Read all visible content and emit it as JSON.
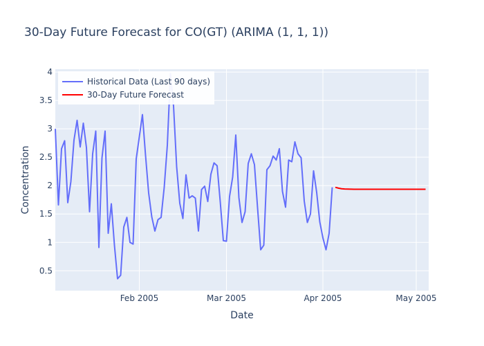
{
  "chart_data": {
    "type": "line",
    "title": "30-Day Future Forecast for CO(GT) (ARIMA (1, 1, 1))",
    "xlabel": "Date",
    "ylabel": "Concentration",
    "xlim": [
      "2005-01-05",
      "2005-05-05"
    ],
    "ylim": [
      0.15,
      4.05
    ],
    "x_ticks": [
      {
        "date": "2005-02-01",
        "label": "Feb 2005"
      },
      {
        "date": "2005-03-01",
        "label": "Mar 2005"
      },
      {
        "date": "2005-04-01",
        "label": "Apr 2005"
      },
      {
        "date": "2005-05-01",
        "label": "May 2005"
      }
    ],
    "y_ticks": [
      {
        "value": 0.5,
        "label": "0.5"
      },
      {
        "value": 1,
        "label": "1"
      },
      {
        "value": 1.5,
        "label": "1.5"
      },
      {
        "value": 2,
        "label": "2"
      },
      {
        "value": 2.5,
        "label": "2.5"
      },
      {
        "value": 3,
        "label": "3"
      },
      {
        "value": 3.5,
        "label": "3.5"
      },
      {
        "value": 4,
        "label": "4"
      }
    ],
    "grid": true,
    "legend_position": "top-left",
    "series": [
      {
        "name": "Historical Data (Last 90 days)",
        "color": "#636efa",
        "x": [
          "2005-01-05",
          "2005-01-06",
          "2005-01-07",
          "2005-01-08",
          "2005-01-09",
          "2005-01-10",
          "2005-01-11",
          "2005-01-12",
          "2005-01-13",
          "2005-01-14",
          "2005-01-15",
          "2005-01-16",
          "2005-01-17",
          "2005-01-18",
          "2005-01-19",
          "2005-01-20",
          "2005-01-21",
          "2005-01-22",
          "2005-01-23",
          "2005-01-24",
          "2005-01-25",
          "2005-01-26",
          "2005-01-27",
          "2005-01-28",
          "2005-01-29",
          "2005-01-30",
          "2005-01-31",
          "2005-02-01",
          "2005-02-02",
          "2005-02-03",
          "2005-02-04",
          "2005-02-05",
          "2005-02-06",
          "2005-02-07",
          "2005-02-08",
          "2005-02-09",
          "2005-02-10",
          "2005-02-11",
          "2005-02-12",
          "2005-02-13",
          "2005-02-14",
          "2005-02-15",
          "2005-02-16",
          "2005-02-17",
          "2005-02-18",
          "2005-02-19",
          "2005-02-20",
          "2005-02-21",
          "2005-02-22",
          "2005-02-23",
          "2005-02-24",
          "2005-02-25",
          "2005-02-26",
          "2005-02-27",
          "2005-02-28",
          "2005-03-01",
          "2005-03-02",
          "2005-03-03",
          "2005-03-04",
          "2005-03-05",
          "2005-03-06",
          "2005-03-07",
          "2005-03-08",
          "2005-03-09",
          "2005-03-10",
          "2005-03-11",
          "2005-03-12",
          "2005-03-13",
          "2005-03-14",
          "2005-03-15",
          "2005-03-16",
          "2005-03-17",
          "2005-03-18",
          "2005-03-19",
          "2005-03-20",
          "2005-03-21",
          "2005-03-22",
          "2005-03-23",
          "2005-03-24",
          "2005-03-25",
          "2005-03-26",
          "2005-03-27",
          "2005-03-28",
          "2005-03-29",
          "2005-03-30",
          "2005-03-31",
          "2005-04-01",
          "2005-04-02",
          "2005-04-03",
          "2005-04-04"
        ],
        "y": [
          3.0,
          1.66,
          2.65,
          2.79,
          1.7,
          2.07,
          2.8,
          3.15,
          2.68,
          3.1,
          2.67,
          1.54,
          2.56,
          2.96,
          0.91,
          2.49,
          2.96,
          1.16,
          1.68,
          0.95,
          0.36,
          0.42,
          1.27,
          1.44,
          1.0,
          0.97,
          2.47,
          2.86,
          3.25,
          2.53,
          1.87,
          1.45,
          1.2,
          1.4,
          1.44,
          1.97,
          2.71,
          3.97,
          3.4,
          2.33,
          1.69,
          1.42,
          2.19,
          1.78,
          1.82,
          1.78,
          1.2,
          1.93,
          1.99,
          1.72,
          2.2,
          2.4,
          2.35,
          1.72,
          1.03,
          1.02,
          1.81,
          2.15,
          2.89,
          1.79,
          1.35,
          1.54,
          2.39,
          2.56,
          2.37,
          1.61,
          0.87,
          0.95,
          2.28,
          2.35,
          2.52,
          2.45,
          2.65,
          1.9,
          1.62,
          2.45,
          2.42,
          2.77,
          2.56,
          2.49,
          1.73,
          1.35,
          1.5,
          2.26,
          1.88,
          1.36,
          1.08,
          0.87,
          1.16,
          1.97
        ]
      },
      {
        "name": "30-Day Future Forecast",
        "color": "#ff0000",
        "x": [
          "2005-04-05",
          "2005-04-06",
          "2005-04-07",
          "2005-04-08",
          "2005-04-09",
          "2005-04-10",
          "2005-04-11",
          "2005-04-12",
          "2005-04-13",
          "2005-04-14",
          "2005-04-15",
          "2005-04-16",
          "2005-04-17",
          "2005-04-18",
          "2005-04-19",
          "2005-04-20",
          "2005-04-21",
          "2005-04-22",
          "2005-04-23",
          "2005-04-24",
          "2005-04-25",
          "2005-04-26",
          "2005-04-27",
          "2005-04-28",
          "2005-04-29",
          "2005-04-30",
          "2005-05-01",
          "2005-05-02",
          "2005-05-03",
          "2005-05-04"
        ],
        "y": [
          1.97,
          1.955,
          1.945,
          1.94,
          1.938,
          1.937,
          1.936,
          1.935,
          1.935,
          1.935,
          1.935,
          1.935,
          1.935,
          1.935,
          1.935,
          1.935,
          1.935,
          1.935,
          1.935,
          1.935,
          1.935,
          1.935,
          1.935,
          1.935,
          1.935,
          1.935,
          1.935,
          1.935,
          1.935,
          1.935
        ]
      }
    ]
  }
}
